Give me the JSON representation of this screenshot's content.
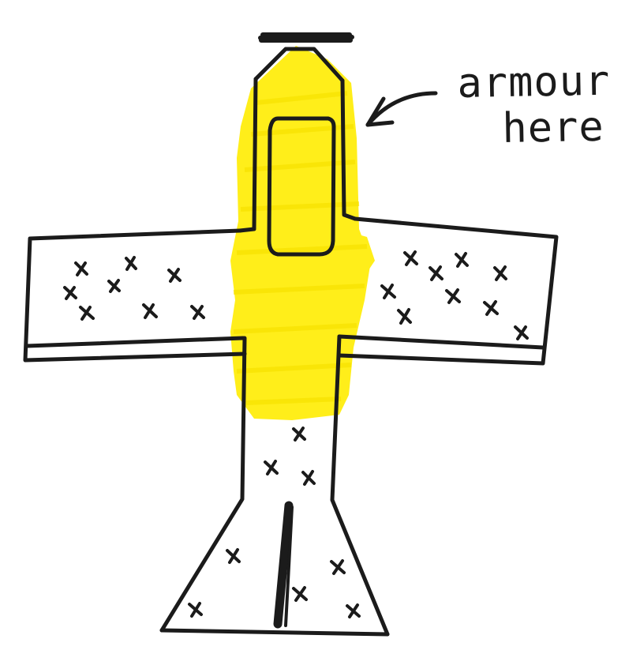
{
  "annotation": {
    "line1": "armour",
    "line2": "here"
  },
  "colors": {
    "ink": "#1b1b1b",
    "highlight": "#ffee1a",
    "background": "#ffffff"
  }
}
